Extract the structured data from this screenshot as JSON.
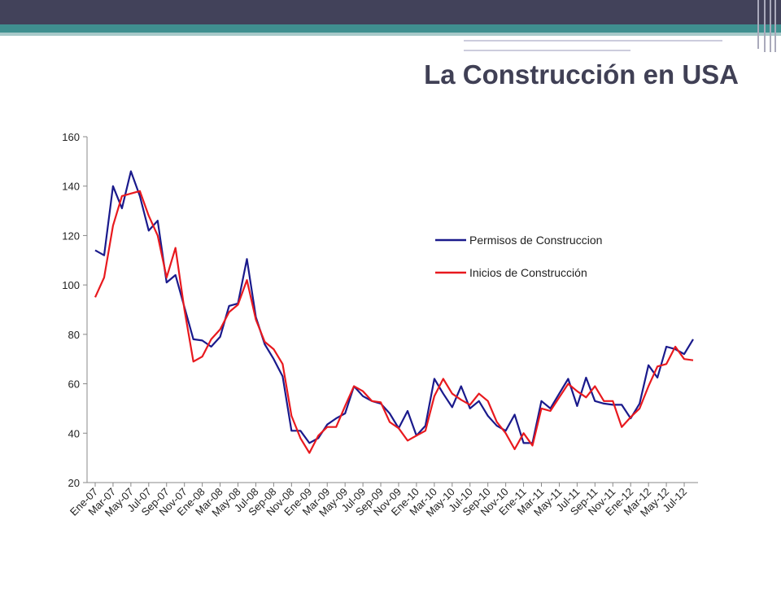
{
  "chart_data": {
    "type": "line",
    "title": "La Construcción en USA",
    "categories": [
      "Ene-07",
      null,
      "Mar-07",
      null,
      "May-07",
      null,
      "Jul-07",
      null,
      "Sep-07",
      null,
      "Nov-07",
      null,
      "Ene-08",
      null,
      "Mar-08",
      null,
      "May-08",
      null,
      "Jul-08",
      null,
      "Sep-08",
      null,
      "Nov-08",
      null,
      "Ene-09",
      null,
      "Mar-09",
      null,
      "May-09",
      null,
      "Jul-09",
      null,
      "Sep-09",
      null,
      "Nov-09",
      null,
      "Ene-10",
      null,
      "Mar-10",
      null,
      "May-10",
      null,
      "Jul-10",
      null,
      "Sep-10",
      null,
      "Nov-10",
      null,
      "Ene-11",
      null,
      "Mar-11",
      null,
      "May-11",
      null,
      "Jul-11",
      null,
      "Sep-11",
      null,
      "Nov-11",
      null,
      "Ene-12",
      null,
      "Mar-12",
      null,
      "May-12",
      null,
      "Jul-12",
      null
    ],
    "series": [
      {
        "name": "Permisos de Construccion",
        "color": "#1a1a8c",
        "values": [
          114,
          112,
          140,
          131,
          146,
          136,
          122,
          126,
          101,
          104,
          91,
          78,
          77.5,
          75,
          79,
          91.5,
          92.5,
          110.5,
          87,
          76,
          70,
          63,
          41,
          41,
          36,
          38,
          43.5,
          46,
          48,
          59,
          55,
          53,
          52,
          48,
          42,
          49,
          39,
          43,
          62,
          56,
          50.5,
          59,
          50,
          53,
          47,
          43,
          41,
          47.5,
          36,
          36,
          53,
          50,
          56,
          62,
          51,
          62.5,
          53,
          52,
          51.5,
          51.5,
          46,
          52,
          67.5,
          62.5,
          75,
          74,
          72,
          78
        ]
      },
      {
        "name": "Inicios de Construcción",
        "color": "#e8191e",
        "values": [
          95,
          103,
          124,
          136,
          137,
          138,
          128,
          120,
          103,
          115,
          90,
          69,
          71,
          78,
          82,
          89,
          92,
          102,
          86,
          77,
          74,
          68,
          47,
          38,
          32,
          39,
          42.5,
          42.5,
          51,
          59,
          57,
          53,
          52.5,
          44.5,
          42,
          37,
          39,
          41,
          55,
          62,
          56,
          53.5,
          51.5,
          56,
          53,
          44.5,
          40,
          33.5,
          40,
          35,
          50,
          49,
          54.5,
          60,
          57,
          54.5,
          59,
          53,
          53,
          42.5,
          46.5,
          50,
          59,
          67,
          68,
          75,
          70,
          69.5
        ]
      }
    ],
    "ylim": [
      20,
      160
    ],
    "yticks": [
      20,
      40,
      60,
      80,
      100,
      120,
      140,
      160
    ],
    "grid": false
  }
}
